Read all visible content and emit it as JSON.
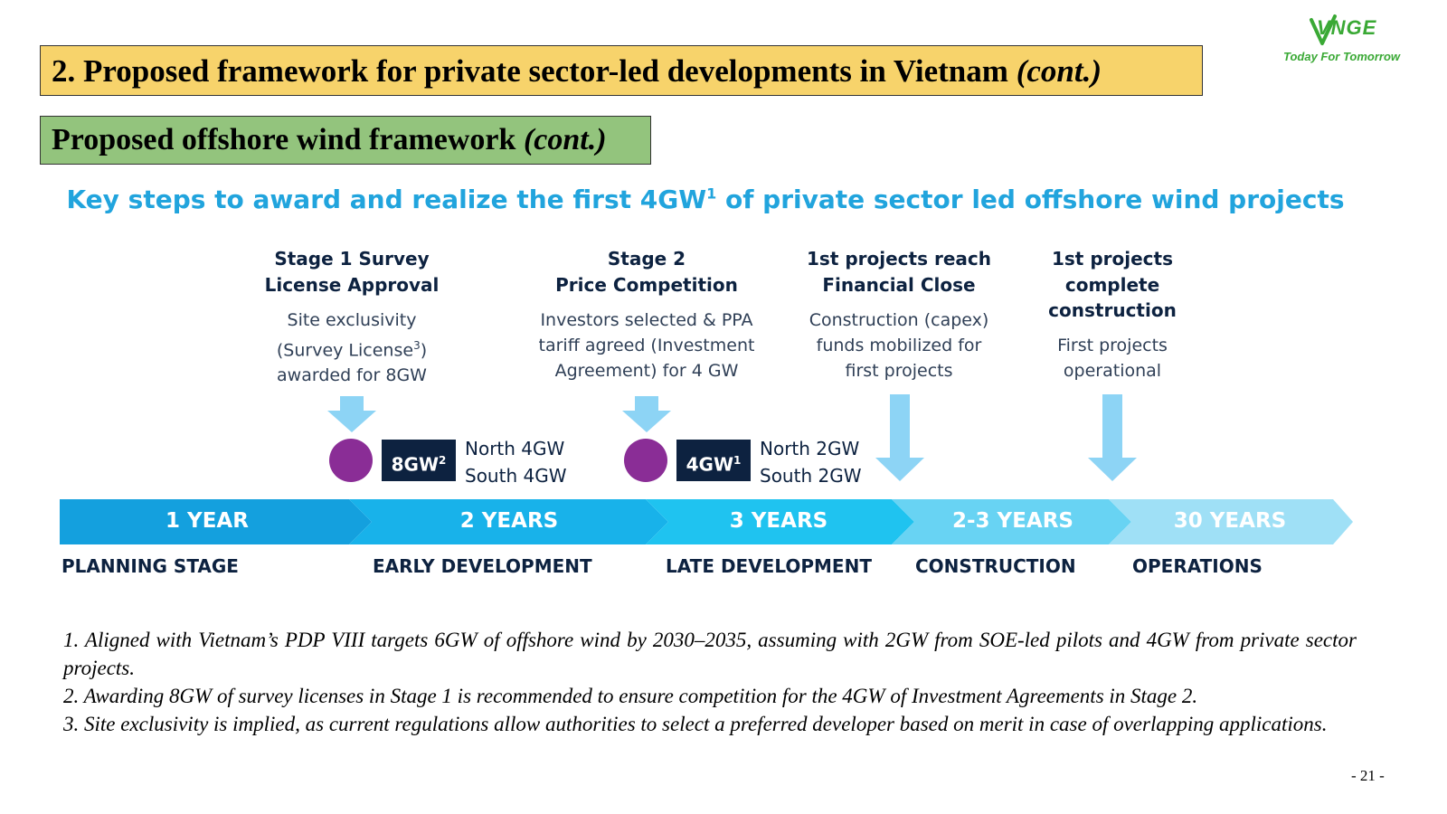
{
  "title": {
    "main": "2. Proposed framework for private sector-led developments in Vietnam",
    "main_suffix": "(cont.)",
    "sub": "Proposed offshore wind framework",
    "sub_suffix": "(cont.)"
  },
  "logo": {
    "text": "VNGE",
    "tagline": "Today For Tomorrow"
  },
  "heading": {
    "pre": "Key steps to award and realize the first 4GW",
    "sup": "1",
    "post": " of private sector led offshore wind projects"
  },
  "stages": [
    {
      "title_line1": "Stage 1 Survey",
      "title_line2": "License Approval",
      "desc_line1": "Site exclusivity",
      "desc_line2_pre": "(Survey License",
      "desc_line2_sup": "3",
      "desc_line2_post": ")",
      "desc_line3": "awarded for 8GW"
    },
    {
      "title_line1": "Stage 2",
      "title_line2": "Price Competition",
      "desc_line1": "Investors selected & PPA",
      "desc_line2": "tariff agreed (Investment",
      "desc_line3": "Agreement) for 4 GW"
    },
    {
      "title_line1": "1st projects reach",
      "title_line2": "Financial Close",
      "desc_line1": "Construction (capex)",
      "desc_line2": "funds mobilized for",
      "desc_line3": "first projects"
    },
    {
      "title_line1": "1st projects",
      "title_line2": "complete",
      "title_line3": "construction",
      "desc_line1": "First projects",
      "desc_line2": "operational"
    }
  ],
  "badges": [
    {
      "value": "8GW",
      "sup": "2",
      "north": "North 4GW",
      "south": "South 4GW"
    },
    {
      "value": "4GW",
      "sup": "1",
      "north": "North 2GW",
      "south": "South 2GW"
    }
  ],
  "timeline": {
    "segments": [
      {
        "duration": "1 YEAR",
        "phase": "PLANNING STAGE",
        "color": "#14a0de"
      },
      {
        "duration": "2 YEARS",
        "phase": "EARLY DEVELOPMENT",
        "color": "#18b2ea"
      },
      {
        "duration": "3 YEARS",
        "phase": "LATE DEVELOPMENT",
        "color": "#1fc3f0"
      },
      {
        "duration": "2-3 YEARS",
        "phase": "CONSTRUCTION",
        "color": "#68d3f3"
      },
      {
        "duration": "30 YEARS",
        "phase": "OPERATIONS",
        "color": "#9fe0f6"
      }
    ]
  },
  "footnotes": [
    "1. Aligned with Vietnam’s PDP VIII targets 6GW of offshore wind by 2030–2035, assuming with 2GW from SOE-led pilots and 4GW from private sector projects.",
    "2. Awarding 8GW of survey licenses in Stage 1 is recommended to ensure competition for the 4GW of Investment Agreements in Stage 2.",
    "3. Site exclusivity is implied, as current regulations allow authorities to select a preferred developer based on merit in case of overlapping applications."
  ],
  "page_number": "- 21 -",
  "colors": {
    "title_bg": "#f7d36b",
    "subtitle_bg": "#93c47d",
    "heading": "#21a4dd",
    "navy": "#0d2240",
    "purple": "#8a2d96",
    "arrow_light": "#8dd4f5",
    "logo_green": "#3aa935"
  }
}
